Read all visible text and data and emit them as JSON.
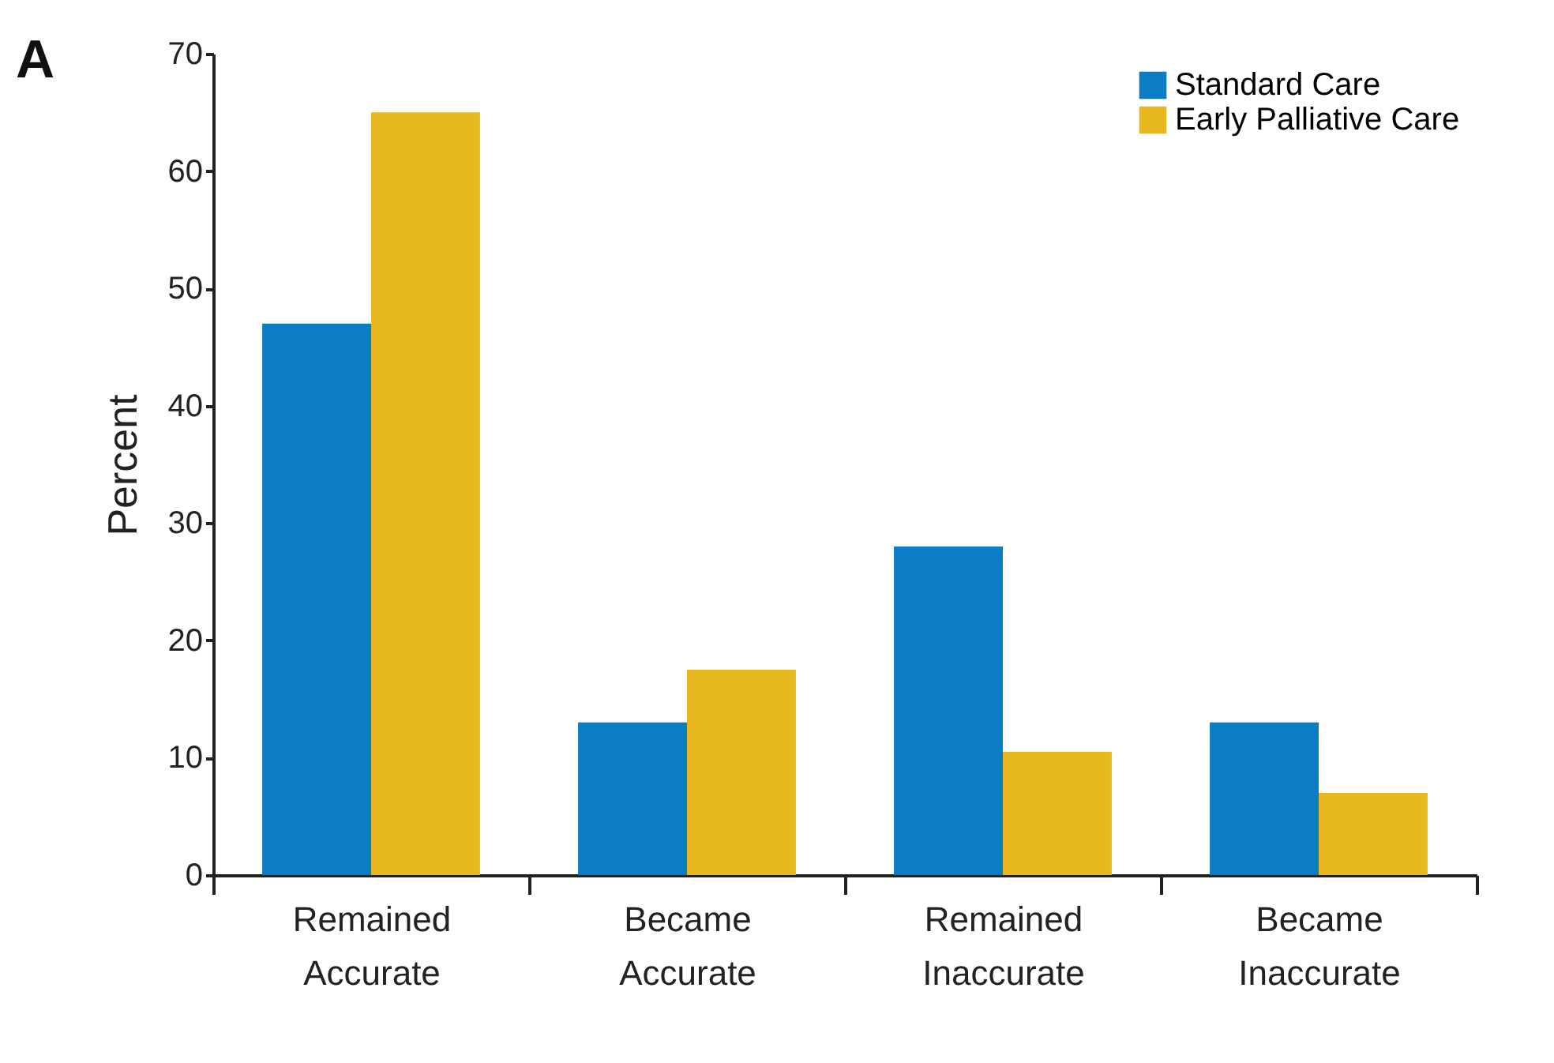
{
  "chart_data": {
    "type": "bar",
    "ylabel": "Percent",
    "annotations": [
      "A"
    ],
    "categories": [
      "Remained Accurate",
      "Became Accurate",
      "Remained Inaccurate",
      "Became Inaccurate"
    ],
    "series": [
      {
        "name": "Standard Care",
        "color": "#0a7dc4",
        "values": [
          47,
          13,
          28,
          13
        ]
      },
      {
        "name": "Early Palliative Care",
        "color": "#e8b820",
        "values": [
          65,
          17.5,
          10.5,
          7
        ]
      }
    ],
    "ylim": [
      0,
      70
    ],
    "yticks": [
      0,
      10,
      20,
      30,
      40,
      50,
      60,
      70
    ],
    "grid": false,
    "legend": "top right"
  }
}
